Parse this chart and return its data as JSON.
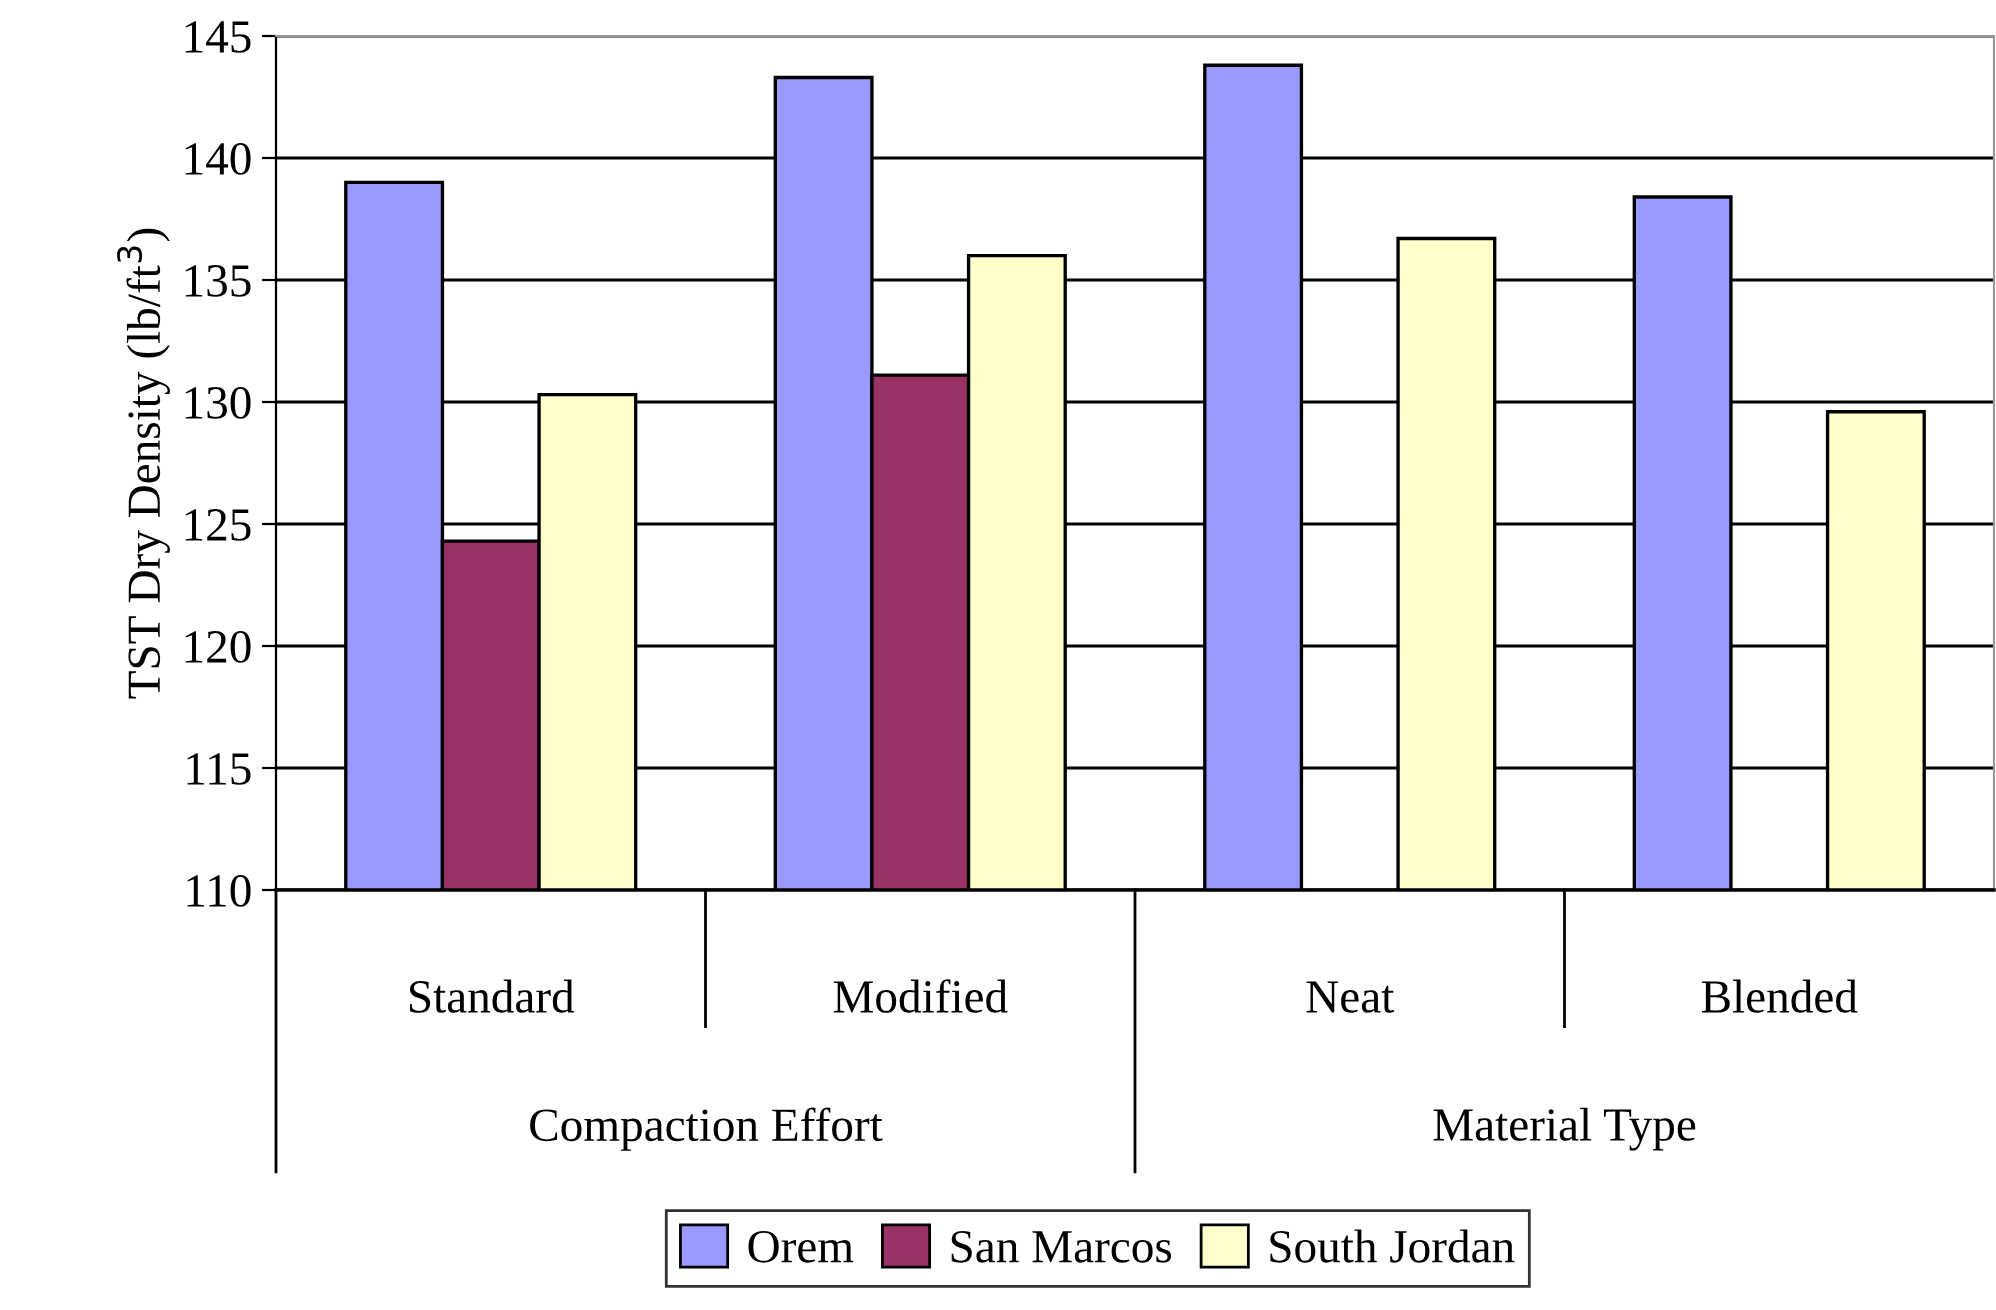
{
  "chart_data": {
    "type": "bar",
    "ylabel": "TST Dry Density (lb/ft$^{3}$)",
    "categories": [
      "Standard",
      "Modified",
      "Neat",
      "Blended"
    ],
    "annotations": [
      "Compaction Effort",
      "Material Type"
    ],
    "series": [
      {
        "name": "Orem",
        "color": "#9999ff",
        "values": [
          139.0,
          143.3,
          143.8,
          138.4
        ]
      },
      {
        "name": "San Marcos",
        "color": "#993366",
        "values": [
          124.3,
          131.1,
          null,
          null
        ]
      },
      {
        "name": "South Jordan",
        "color": "#ffffcc",
        "values": [
          130.3,
          136.0,
          136.7,
          129.6
        ]
      }
    ],
    "ylim": [
      110,
      145
    ],
    "yticks": [
      110,
      115,
      120,
      125,
      130,
      135,
      140,
      145
    ],
    "grid": "y",
    "legend": "bottom"
  }
}
